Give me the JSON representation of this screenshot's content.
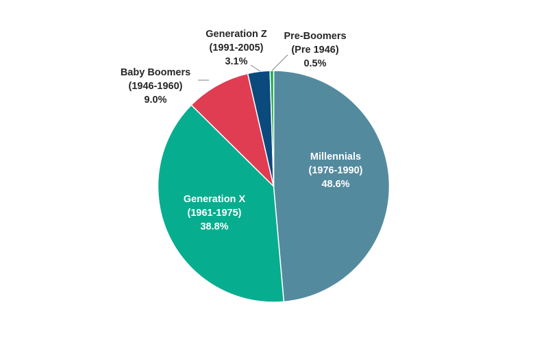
{
  "chart_data": {
    "type": "pie",
    "title": "",
    "start_angle_deg": 0,
    "direction": "clockwise",
    "legend": "none",
    "slices": [
      {
        "label": "Millennials",
        "range": "(1976-1990)",
        "value": 48.6,
        "value_label": "48.6%",
        "color": "#548a9e",
        "label_placement": "inside",
        "label_color": "#ffffff"
      },
      {
        "label": "Generation X",
        "range": "(1961-1975)",
        "value": 38.8,
        "value_label": "38.8%",
        "color": "#07ad8f",
        "label_placement": "inside",
        "label_color": "#ffffff"
      },
      {
        "label": "Baby Boomers",
        "range": "(1946-1960)",
        "value": 9.0,
        "value_label": "9.0%",
        "color": "#e03c52",
        "label_placement": "outside",
        "label_color": "#262626"
      },
      {
        "label": "Generation Z",
        "range": "(1991-2005)",
        "value": 3.1,
        "value_label": "3.1%",
        "color": "#0a4a7d",
        "label_placement": "outside",
        "label_color": "#262626"
      },
      {
        "label": "Pre-Boomers",
        "range": "(Pre 1946)",
        "value": 0.5,
        "value_label": "0.5%",
        "color": "#1fae4b",
        "label_placement": "outside",
        "label_color": "#262626"
      }
    ]
  }
}
